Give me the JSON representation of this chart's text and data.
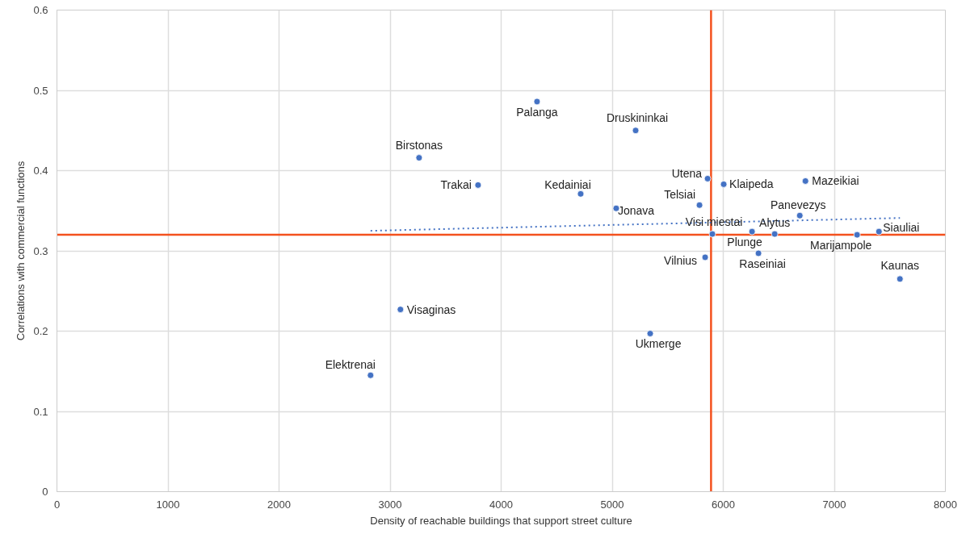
{
  "chart_data": {
    "type": "scatter",
    "xlabel": "Density of reachable buildings that support street culture",
    "ylabel": "Correlations with commercial functions",
    "x": [
      2824,
      3093,
      3261,
      3792,
      4323,
      4716,
      5036,
      5211,
      5342,
      5786,
      5859,
      5837,
      5902,
      6004,
      6259,
      6317,
      6463,
      6689,
      6740,
      7205,
      7402,
      7591
    ],
    "series": [
      {
        "color": "#4472c4",
        "values": [
          0.145,
          0.227,
          0.416,
          0.382,
          0.486,
          0.371,
          0.353,
          0.45,
          0.197,
          0.357,
          0.39,
          0.292,
          0.321,
          0.383,
          0.324,
          0.297,
          0.321,
          0.344,
          0.387,
          0.32,
          0.324,
          0.265
        ]
      },
      {
        "type": "line",
        "color": "#4472c4",
        "line_style": "dotted",
        "marker": "none",
        "x": [
          2824,
          7591
        ],
        "values": [
          0.325,
          0.341
        ]
      }
    ],
    "annotations": [
      {
        "text": "Elektrenai",
        "x": 2824,
        "y": 0.145
      },
      {
        "text": "Visaginas",
        "x": 3093,
        "y": 0.227
      },
      {
        "text": "Birstonas",
        "x": 3261,
        "y": 0.416
      },
      {
        "text": "Trakai",
        "x": 3792,
        "y": 0.382
      },
      {
        "text": "Palanga",
        "x": 4323,
        "y": 0.486
      },
      {
        "text": "Kedainiai",
        "x": 4716,
        "y": 0.371
      },
      {
        "text": "Jonava",
        "x": 5036,
        "y": 0.353
      },
      {
        "text": "Druskininkai",
        "x": 5211,
        "y": 0.45
      },
      {
        "text": "Ukmerge",
        "x": 5342,
        "y": 0.197
      },
      {
        "text": "Telsiai",
        "x": 5786,
        "y": 0.357
      },
      {
        "text": "Utena",
        "x": 5859,
        "y": 0.39
      },
      {
        "text": "Vilnius",
        "x": 5837,
        "y": 0.292
      },
      {
        "text": "Visi miestai",
        "x": 5902,
        "y": 0.321
      },
      {
        "text": "Klaipeda",
        "x": 6004,
        "y": 0.383
      },
      {
        "text": "Plunge",
        "x": 6259,
        "y": 0.324
      },
      {
        "text": "Raseiniai",
        "x": 6317,
        "y": 0.297
      },
      {
        "text": "Alytus",
        "x": 6463,
        "y": 0.321
      },
      {
        "text": "Panevezys",
        "x": 6689,
        "y": 0.344
      },
      {
        "text": "Mazeikiai",
        "x": 6740,
        "y": 0.387
      },
      {
        "text": "Marijampole",
        "x": 7205,
        "y": 0.32
      },
      {
        "text": "Siauliai",
        "x": 7402,
        "y": 0.324
      },
      {
        "text": "Kaunas",
        "x": 7591,
        "y": 0.265
      }
    ],
    "ref_lines": [
      {
        "axis": "x",
        "value": 5890,
        "color": "#f4511e"
      },
      {
        "axis": "y",
        "value": 0.32,
        "color": "#f4511e"
      }
    ],
    "xlim": [
      0,
      8000
    ],
    "xticks": [
      0,
      1000,
      2000,
      3000,
      4000,
      5000,
      6000,
      7000,
      8000
    ],
    "ylim": [
      0,
      0.6
    ],
    "yticks": [
      0,
      0.1,
      0.2,
      0.3,
      0.4,
      0.5,
      0.6
    ],
    "grid": true,
    "marker": "circle"
  }
}
